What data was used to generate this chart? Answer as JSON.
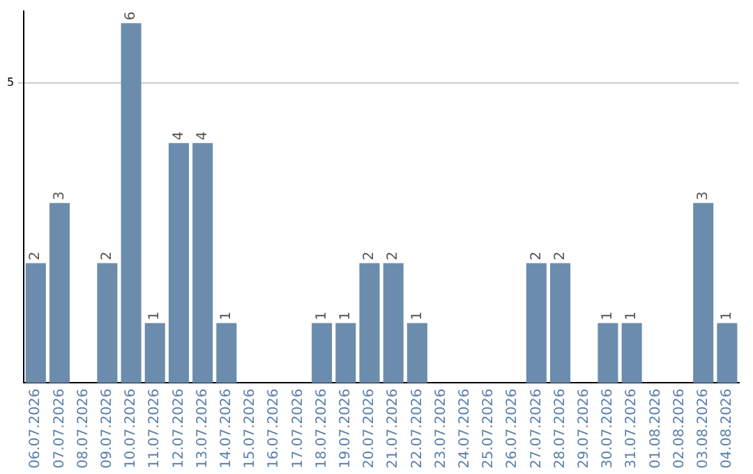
{
  "chart_data": {
    "type": "bar",
    "categories": [
      "06.07.2026",
      "07.07.2026",
      "08.07.2026",
      "09.07.2026",
      "10.07.2026",
      "11.07.2026",
      "12.07.2026",
      "13.07.2026",
      "14.07.2026",
      "15.07.2026",
      "16.07.2026",
      "17.07.2026",
      "18.07.2026",
      "19.07.2026",
      "20.07.2026",
      "21.07.2026",
      "22.07.2026",
      "23.07.2026",
      "24.07.2026",
      "25.07.2026",
      "26.07.2026",
      "27.07.2026",
      "28.07.2026",
      "29.07.2026",
      "30.07.2026",
      "31.07.2026",
      "01.08.2026",
      "02.08.2026",
      "03.08.2026",
      "04.08.2026"
    ],
    "values": [
      2,
      3,
      0,
      2,
      6,
      1,
      4,
      4,
      1,
      0,
      0,
      0,
      1,
      1,
      2,
      2,
      1,
      0,
      0,
      0,
      0,
      2,
      2,
      0,
      1,
      1,
      0,
      0,
      3,
      1
    ],
    "value_labels": [
      "2",
      "3",
      null,
      "2",
      "6",
      "1",
      "4",
      "4",
      "1",
      null,
      null,
      null,
      "1",
      "1",
      "2",
      "2",
      "1",
      null,
      null,
      null,
      null,
      "2",
      "2",
      null,
      "1",
      "1",
      null,
      null,
      "3",
      "1"
    ],
    "color": "#6b8cad",
    "ylim": [
      0,
      6.2
    ],
    "yticks": [
      5
    ],
    "grid": "y"
  }
}
